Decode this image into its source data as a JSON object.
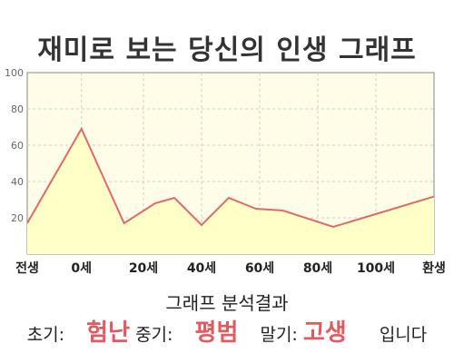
{
  "title": "재미로 보는 당신의 인생 그래프",
  "chart_data": {
    "type": "area",
    "x": [
      0,
      14,
      25,
      33,
      38,
      45,
      52,
      59,
      66,
      79,
      93
    ],
    "y": [
      17,
      69,
      17,
      28,
      31,
      16,
      31,
      25,
      24,
      15,
      24
    ],
    "x_ticks": [
      {
        "x": 0,
        "label": "전생"
      },
      {
        "x": 14,
        "label": "0세"
      },
      {
        "x": 30,
        "label": "20세"
      },
      {
        "x": 45,
        "label": "40세"
      },
      {
        "x": 60,
        "label": "60세"
      },
      {
        "x": 75,
        "label": "80세"
      },
      {
        "x": 90,
        "label": "100세"
      },
      {
        "x": 105,
        "label": "환생"
      }
    ],
    "y_ticks": [
      20,
      40,
      60,
      80,
      100
    ],
    "xlim": [
      0,
      105
    ],
    "ylim": [
      0,
      100
    ],
    "grid": true,
    "colors": {
      "line": "#e06a6a",
      "fill": "#ffffc8",
      "plot_bg": "#fffde8",
      "grid": "#d0d0c8"
    }
  },
  "analysis": {
    "title": "그래프 분석결과",
    "early_label": "초기:",
    "early_value": "험난",
    "mid_label": "중기:",
    "mid_value": "평범",
    "late_label": "말기:",
    "late_value": "고생",
    "suffix": "입니다"
  }
}
